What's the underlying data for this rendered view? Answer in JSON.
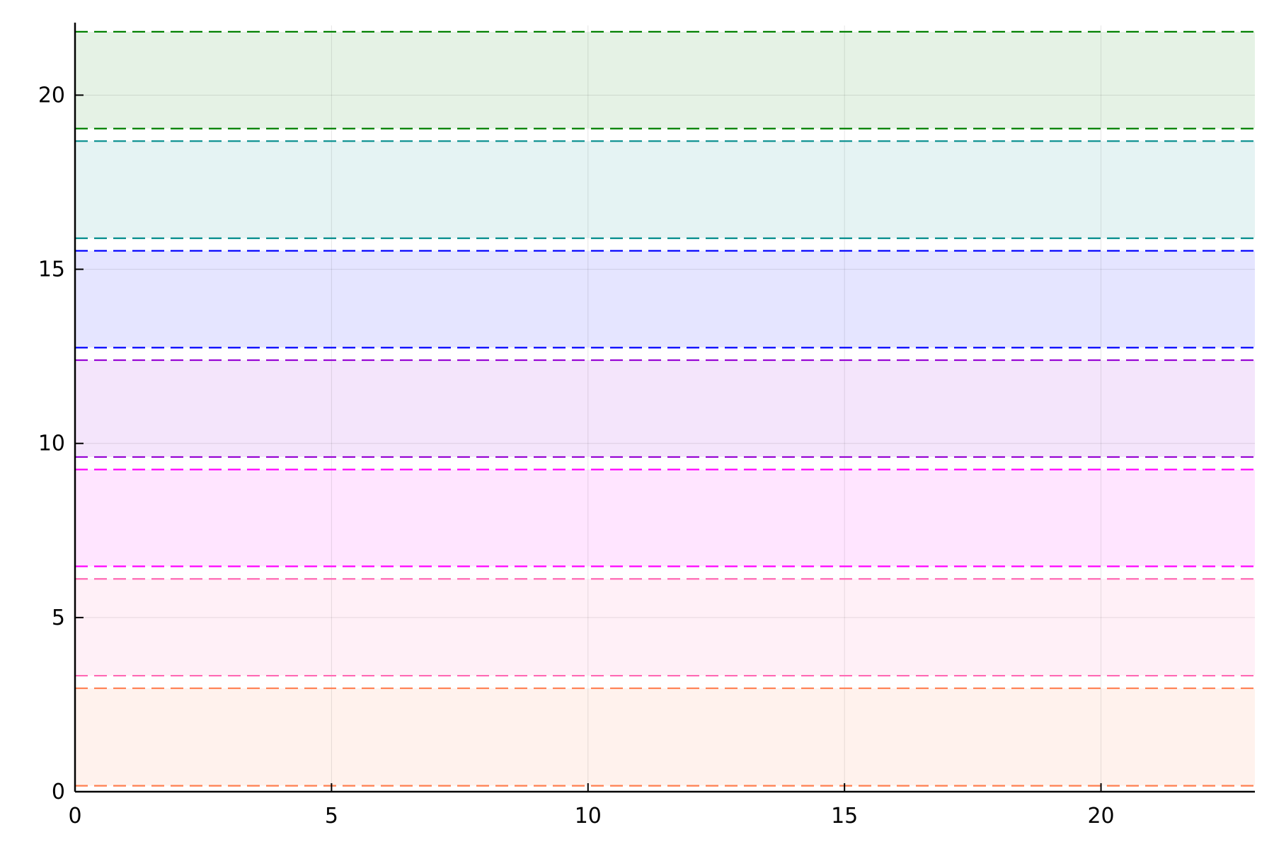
{
  "chart_data": {
    "type": "area",
    "title": "",
    "xlabel": "",
    "ylabel": "",
    "xlim": [
      0,
      23
    ],
    "ylim": [
      0,
      22
    ],
    "grid": true,
    "legend": "none",
    "x_ticks": [
      0,
      5,
      10,
      15,
      20
    ],
    "y_ticks": [
      0,
      5,
      10,
      15,
      20
    ],
    "bands": [
      {
        "lower": 0.17,
        "upper": 2.97,
        "color": "#ff7f50"
      },
      {
        "lower": 3.33,
        "upper": 6.11,
        "color": "#ff69b4"
      },
      {
        "lower": 6.47,
        "upper": 9.25,
        "color": "#ff00ff"
      },
      {
        "lower": 9.61,
        "upper": 12.39,
        "color": "#9400d3"
      },
      {
        "lower": 12.75,
        "upper": 15.53,
        "color": "#0000ff"
      },
      {
        "lower": 15.89,
        "upper": 18.68,
        "color": "#008b8b"
      },
      {
        "lower": 19.04,
        "upper": 21.82,
        "color": "#008000"
      }
    ]
  }
}
